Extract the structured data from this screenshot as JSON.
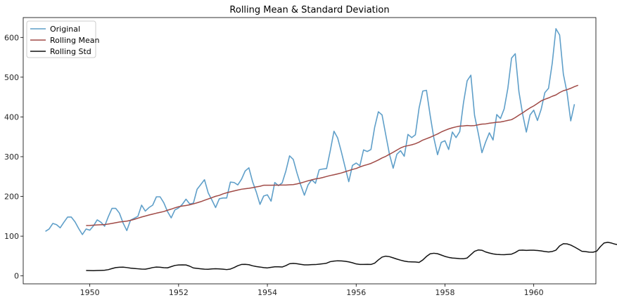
{
  "chart_data": {
    "type": "line",
    "title": "Rolling Mean & Standard Deviation",
    "xlabel": "",
    "ylabel": "",
    "xlim": [
      1948.5,
      1961.4
    ],
    "ylim": [
      -20,
      650
    ],
    "x_ticks": [
      1950,
      1952,
      1954,
      1956,
      1958,
      1960
    ],
    "y_ticks": [
      0,
      100,
      200,
      300,
      400,
      500,
      600
    ],
    "x_tick_labels": [
      "1950",
      "1952",
      "1954",
      "1956",
      "1958",
      "1960"
    ],
    "y_tick_labels": [
      "0",
      "100",
      "200",
      "300",
      "400",
      "500",
      "600"
    ],
    "grid": false,
    "legend": {
      "position": "top-left",
      "entries": [
        "Original",
        "Rolling Mean",
        "Rolling Std"
      ]
    },
    "x_start": "1949-01",
    "x_step": "1 month",
    "series": [
      {
        "name": "Original",
        "color": "#5f9fc9",
        "start": "1949-01",
        "values": [
          112,
          118,
          132,
          129,
          121,
          135,
          148,
          148,
          136,
          119,
          104,
          118,
          115,
          126,
          141,
          135,
          125,
          149,
          170,
          170,
          158,
          133,
          114,
          140,
          145,
          150,
          178,
          163,
          172,
          178,
          199,
          199,
          184,
          162,
          146,
          166,
          171,
          180,
          193,
          181,
          183,
          218,
          230,
          242,
          209,
          191,
          172,
          194,
          196,
          196,
          236,
          235,
          229,
          243,
          264,
          272,
          237,
          211,
          180,
          201,
          204,
          188,
          235,
          227,
          234,
          264,
          302,
          293,
          259,
          229,
          203,
          229,
          242,
          233,
          267,
          269,
          270,
          315,
          364,
          347,
          312,
          274,
          237,
          278,
          284,
          277,
          317,
          313,
          318,
          374,
          413,
          405,
          355,
          306,
          271,
          306,
          315,
          301,
          356,
          348,
          355,
          422,
          465,
          467,
          404,
          347,
          305,
          336,
          340,
          318,
          362,
          348,
          363,
          435,
          491,
          505,
          404,
          359,
          310,
          337,
          360,
          342,
          406,
          396,
          420,
          472,
          548,
          559,
          463,
          407,
          362,
          405,
          417,
          391,
          419,
          461,
          472,
          535,
          622,
          606,
          508,
          461,
          390,
          432
        ]
      },
      {
        "name": "Rolling Mean",
        "color": "#a04a46",
        "start": "1949-12",
        "values": [
          126.7,
          126.9,
          127.6,
          128.3,
          128.8,
          129.2,
          130.5,
          132.0,
          133.8,
          135.5,
          136.7,
          137.8,
          139.7,
          142.2,
          145.2,
          148.2,
          150.6,
          153.2,
          155.5,
          157.8,
          159.8,
          162.0,
          165.2,
          168.0,
          171.3,
          174.0,
          175.7,
          177.2,
          178.9,
          181.2,
          184.0,
          186.8,
          190.2,
          193.6,
          196.8,
          200.3,
          202.6,
          206.4,
          209.1,
          211.6,
          213.8,
          216.0,
          218.1,
          219.3,
          220.5,
          222.0,
          223.9,
          225.5,
          228.1,
          228.2,
          228.2,
          228.4,
          228.4,
          228.5,
          228.7,
          229.2,
          229.8,
          231.4,
          233.7,
          236.4,
          239.3,
          241.6,
          244.1,
          245.4,
          247.6,
          250.1,
          252.6,
          254.5,
          256.7,
          259.0,
          262.0,
          265.0,
          267.8,
          270.3,
          274.1,
          277.4,
          280.0,
          283.0,
          287.2,
          291.7,
          296.8,
          300.8,
          306.0,
          311.0,
          316.6,
          321.9,
          325.7,
          327.7,
          329.8,
          332.6,
          336.5,
          341.7,
          345.2,
          348.8,
          353.0,
          357.1,
          362.1,
          366.2,
          369.8,
          372.7,
          375.0,
          376.9,
          377.3,
          378.5,
          377.8,
          378.3,
          380.1,
          381.9,
          382.5,
          384.1,
          385.2,
          386.6,
          387.3,
          389.1,
          391.2,
          393.1,
          398.3,
          404.5,
          410.3,
          416.7,
          422.7,
          427.7,
          433.8,
          440.3,
          444.4,
          447.8,
          452.0,
          455.3,
          461.3,
          465.9,
          468.5,
          472.1,
          476.2,
          479.7
        ]
      },
      {
        "name": "Rolling Std",
        "color": "#111111",
        "start": "1949-12",
        "values": [
          13.7,
          13.4,
          13.2,
          13.5,
          13.9,
          14.2,
          15.7,
          18.4,
          20.9,
          21.8,
          22.0,
          21.0,
          19.6,
          18.7,
          17.9,
          17.1,
          16.9,
          18.7,
          21.0,
          22.3,
          21.8,
          20.7,
          20.2,
          23.3,
          26.3,
          27.5,
          27.8,
          27.5,
          24.4,
          20.0,
          18.8,
          17.8,
          16.8,
          16.7,
          17.6,
          18.0,
          17.5,
          16.8,
          15.9,
          17.2,
          21.0,
          25.7,
          28.8,
          29.1,
          28.2,
          25.4,
          23.6,
          22.3,
          20.8,
          20.1,
          21.6,
          22.8,
          22.9,
          22.4,
          25.8,
          30.6,
          31.5,
          30.6,
          29.0,
          27.7,
          27.8,
          28.3,
          28.5,
          29.5,
          30.5,
          32.0,
          35.8,
          37.2,
          38.0,
          37.7,
          36.8,
          35.2,
          33.0,
          30.1,
          28.9,
          28.8,
          29.1,
          28.8,
          32.1,
          40.2,
          47.3,
          49.7,
          48.4,
          45.4,
          42.3,
          39.6,
          37.2,
          35.7,
          35.3,
          35.0,
          34.0,
          40.0,
          48.9,
          55.6,
          57.0,
          55.8,
          52.5,
          49.0,
          46.6,
          44.9,
          44.2,
          43.4,
          43.1,
          45.0,
          53.5,
          61.9,
          65.2,
          64.5,
          60.2,
          57.6,
          55.4,
          54.1,
          53.5,
          53.4,
          54.1,
          54.7,
          58.8,
          64.4,
          64.9,
          64.2,
          64.6,
          64.6,
          63.9,
          62.8,
          61.3,
          60.3,
          61.4,
          64.8,
          75.4,
          81.0,
          80.5,
          77.6,
          72.8,
          67.5,
          62.0,
          61.0,
          59.7,
          59.5,
          62.1,
          73.5,
          82.8,
          84.5,
          82.7,
          79.8,
          78.3
        ]
      }
    ]
  }
}
